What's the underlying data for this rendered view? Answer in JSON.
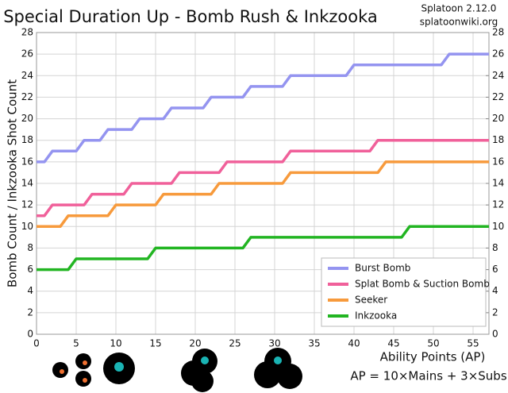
{
  "chart_data": {
    "type": "line",
    "title": "Special Duration Up - Bomb Rush & Inkzooka",
    "version": "Splatoon 2.12.0",
    "source": "splatoonwiki.org",
    "y_label": "Bomb Count / Inkzooka Shot Count",
    "x_label": "Ability Points (AP)",
    "formula": "AP = 10×Mains + 3×Subs",
    "x": [
      0,
      1,
      2,
      3,
      4,
      5,
      6,
      7,
      8,
      9,
      10,
      11,
      12,
      13,
      14,
      15,
      16,
      17,
      18,
      19,
      20,
      21,
      22,
      23,
      24,
      25,
      26,
      27,
      28,
      29,
      30,
      31,
      32,
      33,
      34,
      35,
      36,
      37,
      38,
      39,
      40,
      41,
      42,
      43,
      44,
      45,
      46,
      47,
      48,
      49,
      50,
      51,
      52,
      53,
      54,
      55,
      56,
      57
    ],
    "series": [
      {
        "name": "Burst Bomb",
        "color": "#9494f0",
        "values": [
          16,
          16,
          17,
          17,
          17,
          17,
          18,
          18,
          18,
          19,
          19,
          19,
          19,
          20,
          20,
          20,
          20,
          21,
          21,
          21,
          21,
          21,
          22,
          22,
          22,
          22,
          22,
          23,
          23,
          23,
          23,
          23,
          24,
          24,
          24,
          24,
          24,
          24,
          24,
          24,
          25,
          25,
          25,
          25,
          25,
          25,
          25,
          25,
          25,
          25,
          25,
          25,
          26,
          26,
          26,
          26,
          26,
          26
        ]
      },
      {
        "name": "Splat Bomb & Suction Bomb",
        "color": "#f0609a",
        "values": [
          11,
          11,
          12,
          12,
          12,
          12,
          12,
          13,
          13,
          13,
          13,
          13,
          14,
          14,
          14,
          14,
          14,
          14,
          15,
          15,
          15,
          15,
          15,
          15,
          16,
          16,
          16,
          16,
          16,
          16,
          16,
          16,
          17,
          17,
          17,
          17,
          17,
          17,
          17,
          17,
          17,
          17,
          17,
          18,
          18,
          18,
          18,
          18,
          18,
          18,
          18,
          18,
          18,
          18,
          18,
          18,
          18,
          18
        ]
      },
      {
        "name": "Seeker",
        "color": "#f79a3c",
        "values": [
          10,
          10,
          10,
          10,
          11,
          11,
          11,
          11,
          11,
          11,
          12,
          12,
          12,
          12,
          12,
          12,
          13,
          13,
          13,
          13,
          13,
          13,
          13,
          14,
          14,
          14,
          14,
          14,
          14,
          14,
          14,
          14,
          15,
          15,
          15,
          15,
          15,
          15,
          15,
          15,
          15,
          15,
          15,
          15,
          16,
          16,
          16,
          16,
          16,
          16,
          16,
          16,
          16,
          16,
          16,
          16,
          16,
          16
        ]
      },
      {
        "name": "Inkzooka",
        "color": "#22b522",
        "values": [
          6,
          6,
          6,
          6,
          6,
          7,
          7,
          7,
          7,
          7,
          7,
          7,
          7,
          7,
          7,
          8,
          8,
          8,
          8,
          8,
          8,
          8,
          8,
          8,
          8,
          8,
          8,
          9,
          9,
          9,
          9,
          9,
          9,
          9,
          9,
          9,
          9,
          9,
          9,
          9,
          9,
          9,
          9,
          9,
          9,
          9,
          9,
          10,
          10,
          10,
          10,
          10,
          10,
          10,
          10,
          10,
          10,
          10
        ]
      }
    ],
    "xlim": [
      0,
      57
    ],
    "xticks": [
      0,
      5,
      10,
      15,
      20,
      25,
      30,
      35,
      40,
      45,
      50,
      55
    ],
    "ylim": [
      0,
      28
    ],
    "yticks": [
      0,
      2,
      4,
      6,
      8,
      10,
      12,
      14,
      16,
      18,
      20,
      22,
      24,
      26,
      28
    ],
    "y2lim": [
      0,
      28
    ],
    "y2ticks": [
      0,
      2,
      4,
      6,
      8,
      10,
      12,
      14,
      16,
      18,
      20,
      22,
      24,
      26,
      28
    ],
    "grid": true,
    "legend": "lower right"
  }
}
